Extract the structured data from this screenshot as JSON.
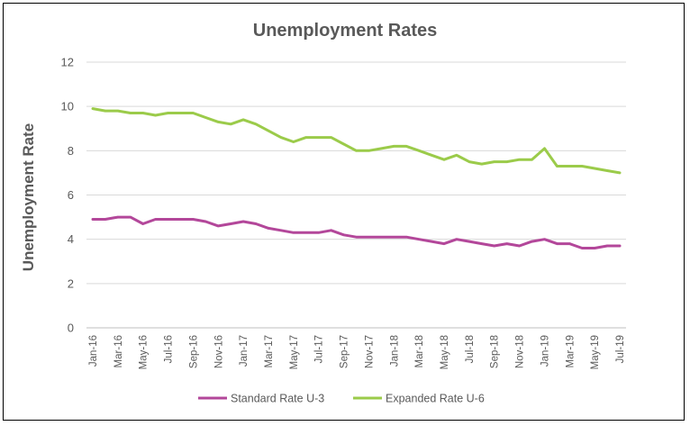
{
  "chart_data": {
    "type": "line",
    "title": "Unemployment Rates",
    "xlabel": "",
    "ylabel": "Unemployment Rate",
    "ylim": [
      0,
      12
    ],
    "yticks": [
      0,
      2,
      4,
      6,
      8,
      10,
      12
    ],
    "grid": true,
    "legend_position": "bottom",
    "categories": [
      "Jan-16",
      "Feb-16",
      "Mar-16",
      "Apr-16",
      "May-16",
      "Jun-16",
      "Jul-16",
      "Aug-16",
      "Sep-16",
      "Oct-16",
      "Nov-16",
      "Dec-16",
      "Jan-17",
      "Feb-17",
      "Mar-17",
      "Apr-17",
      "May-17",
      "Jun-17",
      "Jul-17",
      "Aug-17",
      "Sep-17",
      "Oct-17",
      "Nov-17",
      "Dec-17",
      "Jan-18",
      "Feb-18",
      "Mar-18",
      "Apr-18",
      "May-18",
      "Jun-18",
      "Jul-18",
      "Aug-18",
      "Sep-18",
      "Oct-18",
      "Nov-18",
      "Dec-18",
      "Jan-19",
      "Feb-19",
      "Mar-19",
      "Apr-19",
      "May-19",
      "Jun-19",
      "Jul-19"
    ],
    "tick_labels": [
      "Jan-16",
      "Mar-16",
      "May-16",
      "Jul-16",
      "Sep-16",
      "Nov-16",
      "Jan-17",
      "Mar-17",
      "May-17",
      "Jul-17",
      "Sep-17",
      "Nov-17",
      "Jan-18",
      "Mar-18",
      "May-18",
      "Jul-18",
      "Sep-18",
      "Nov-18",
      "Jan-19",
      "Mar-19",
      "May-19",
      "Jul-19"
    ],
    "series": [
      {
        "name": "Standard Rate U-3",
        "color": "#b3479a",
        "values": [
          4.9,
          4.9,
          5.0,
          5.0,
          4.7,
          4.9,
          4.9,
          4.9,
          4.9,
          4.8,
          4.6,
          4.7,
          4.8,
          4.7,
          4.5,
          4.4,
          4.3,
          4.3,
          4.3,
          4.4,
          4.2,
          4.1,
          4.1,
          4.1,
          4.1,
          4.1,
          4.0,
          3.9,
          3.8,
          4.0,
          3.9,
          3.8,
          3.7,
          3.8,
          3.7,
          3.9,
          4.0,
          3.8,
          3.8,
          3.6,
          3.6,
          3.7,
          3.7
        ]
      },
      {
        "name": "Expanded Rate U-6",
        "color": "#9bcb4a",
        "values": [
          9.9,
          9.8,
          9.8,
          9.7,
          9.7,
          9.6,
          9.7,
          9.7,
          9.7,
          9.5,
          9.3,
          9.2,
          9.4,
          9.2,
          8.9,
          8.6,
          8.4,
          8.6,
          8.6,
          8.6,
          8.3,
          8.0,
          8.0,
          8.1,
          8.2,
          8.2,
          8.0,
          7.8,
          7.6,
          7.8,
          7.5,
          7.4,
          7.5,
          7.5,
          7.6,
          7.6,
          8.1,
          7.3,
          7.3,
          7.3,
          7.2,
          7.1,
          7.0
        ]
      }
    ]
  }
}
